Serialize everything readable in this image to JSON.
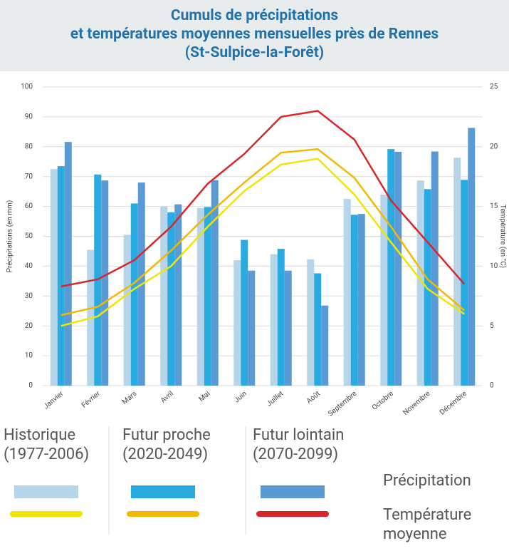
{
  "chart_data": {
    "type": "bar_line",
    "title_lines": [
      "Cumuls de précipitations",
      "et températures moyennes mensuelles près de Rennes",
      "(St-Sulpice-la-Forêt)"
    ],
    "ylabel": "Précipitations (en mm)",
    "y2label": "Température (en °C)",
    "categories": [
      "Janvier",
      "Février",
      "Mars",
      "Avril",
      "Mai",
      "Juin",
      "Juillet",
      "Août",
      "Septembre",
      "Octobre",
      "Novembre",
      "Décembre"
    ],
    "ylim": [
      0,
      100
    ],
    "yticks": [
      0,
      10,
      20,
      30,
      40,
      50,
      60,
      70,
      80,
      90,
      100
    ],
    "y2lim": [
      0,
      25
    ],
    "y2ticks": [
      0,
      5,
      10,
      15,
      20,
      25
    ],
    "grid": true,
    "periods": [
      "Historique (1977-2006)",
      "Futur proche (2020-2049)",
      "Futur lointain (2070-2099)"
    ],
    "legend_rows": [
      "Précipitation",
      "Température moyenne"
    ],
    "bar_series": [
      {
        "color": "#b6d4ea",
        "values": [
          72.5,
          45.5,
          50.5,
          60,
          59.5,
          42,
          44,
          42.3,
          62.5,
          64,
          68.7,
          76.3
        ]
      },
      {
        "color": "#29abe2",
        "values": [
          73.5,
          70.7,
          61,
          58,
          59.8,
          48.8,
          45.8,
          37.6,
          57.2,
          79.2,
          65.8,
          68.9
        ]
      },
      {
        "color": "#5b9bd5",
        "values": [
          81.6,
          68.7,
          68,
          60.7,
          68.8,
          38.5,
          38.5,
          26.8,
          57.5,
          78.3,
          78.4,
          86.3
        ]
      }
    ],
    "line_series": [
      {
        "color": "#f0e600",
        "axis": "y2",
        "values": [
          5,
          5.8,
          8.1,
          10,
          13.3,
          16.3,
          18.5,
          19,
          16,
          12,
          8.1,
          6
        ]
      },
      {
        "color": "#f5b800",
        "axis": "y2",
        "values": [
          5.9,
          6.6,
          8.6,
          11.3,
          14.3,
          17,
          19.5,
          19.8,
          17.4,
          13.3,
          8.9,
          6.3
        ]
      },
      {
        "color": "#d9262a",
        "axis": "y2",
        "values": [
          8.3,
          8.9,
          10.5,
          13.3,
          16.9,
          19.4,
          22.5,
          23,
          20.6,
          15.5,
          12,
          8.5
        ]
      }
    ]
  }
}
